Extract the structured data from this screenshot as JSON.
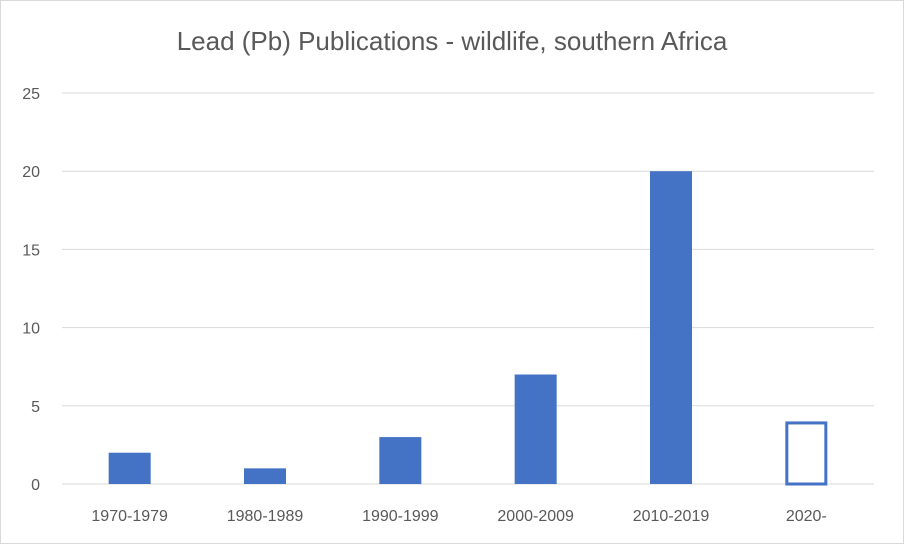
{
  "chart_data": {
    "type": "bar",
    "title": "Lead (Pb) Publications - wildlife, southern Africa",
    "xlabel": "",
    "ylabel": "",
    "categories": [
      "1970-1979",
      "1980-1989",
      "1990-1999",
      "2000-2009",
      "2010-2019",
      "2020-"
    ],
    "values": [
      2,
      1,
      3,
      7,
      20,
      4
    ],
    "yticks": [
      "0",
      "5",
      "10",
      "15",
      "20",
      "25"
    ],
    "ylim": [
      0,
      25
    ],
    "grid": true,
    "legend": "none",
    "colors": {
      "bar": "#4472c4",
      "grid": "#d9d9d9",
      "outline_bar_fill": "#ffffff"
    },
    "bar_styles": [
      "filled",
      "filled",
      "filled",
      "filled",
      "filled",
      "outline"
    ]
  }
}
